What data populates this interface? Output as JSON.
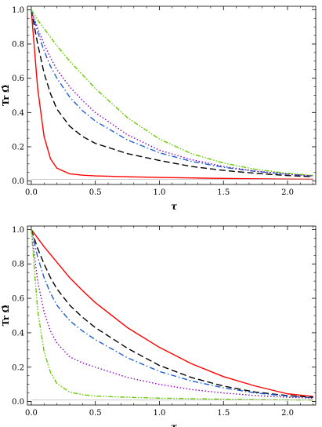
{
  "chart_data": [
    {
      "type": "line",
      "xlabel": "τ",
      "ylabel": "Tr Ω̂",
      "xlim": [
        -0.03,
        2.22
      ],
      "ylim": [
        -0.02,
        1.02
      ],
      "x_ticks": [
        "0.0",
        "0.5",
        "1.0",
        "1.5",
        "2.0"
      ],
      "y_ticks": [
        "0.0",
        "0.2",
        "0.4",
        "0.6",
        "0.8",
        "1.0"
      ],
      "x": [
        0,
        0.05,
        0.1,
        0.15,
        0.2,
        0.3,
        0.4,
        0.5,
        0.75,
        1.0,
        1.25,
        1.5,
        1.75,
        2.0,
        2.2
      ],
      "series": [
        {
          "color": "#ff0000",
          "dash": "solid",
          "values": [
            1.0,
            0.54,
            0.26,
            0.13,
            0.075,
            0.042,
            0.034,
            0.03,
            0.025,
            0.021,
            0.018,
            0.015,
            0.013,
            0.011,
            0.01
          ]
        },
        {
          "color": "#000000",
          "dash": "dashed",
          "values": [
            1.0,
            0.8,
            0.63,
            0.51,
            0.42,
            0.32,
            0.26,
            0.22,
            0.16,
            0.12,
            0.085,
            0.062,
            0.045,
            0.032,
            0.025
          ]
        },
        {
          "color": "#1f5fd0",
          "dash": "dashdot",
          "values": [
            1.0,
            0.87,
            0.76,
            0.67,
            0.6,
            0.49,
            0.41,
            0.35,
            0.24,
            0.165,
            0.115,
            0.08,
            0.056,
            0.04,
            0.03
          ]
        },
        {
          "color": "#8a00c8",
          "dash": "dotted",
          "values": [
            1.0,
            0.89,
            0.8,
            0.72,
            0.65,
            0.55,
            0.47,
            0.4,
            0.27,
            0.18,
            0.125,
            0.085,
            0.058,
            0.04,
            0.03
          ]
        },
        {
          "color": "#66cc00",
          "dash": "dashdotdot",
          "values": [
            1.0,
            0.94,
            0.89,
            0.84,
            0.79,
            0.7,
            0.62,
            0.54,
            0.37,
            0.245,
            0.16,
            0.105,
            0.068,
            0.045,
            0.033
          ]
        },
        {
          "color": "#aaaaaa",
          "dash": "thin",
          "values": [
            0.01,
            0.01,
            0.01,
            0.01,
            0.01,
            0.01,
            0.01,
            0.01,
            0.01,
            0.01,
            0.01,
            0.01,
            0.01,
            0.01,
            0.01
          ]
        }
      ]
    },
    {
      "type": "line",
      "xlabel": "τ",
      "ylabel": "Tr Ω̂",
      "xlim": [
        -0.03,
        2.22
      ],
      "ylim": [
        -0.02,
        1.02
      ],
      "x_ticks": [
        "0.0",
        "0.5",
        "1.0",
        "1.5",
        "2.0"
      ],
      "y_ticks": [
        "0.0",
        "0.2",
        "0.4",
        "0.6",
        "0.8",
        "1.0"
      ],
      "x": [
        0,
        0.05,
        0.1,
        0.15,
        0.2,
        0.3,
        0.4,
        0.5,
        0.75,
        1.0,
        1.25,
        1.5,
        1.75,
        2.0,
        2.2
      ],
      "series": [
        {
          "color": "#ff0000",
          "dash": "solid",
          "values": [
            1.0,
            0.95,
            0.9,
            0.855,
            0.81,
            0.72,
            0.645,
            0.575,
            0.43,
            0.315,
            0.22,
            0.145,
            0.09,
            0.045,
            0.03
          ]
        },
        {
          "color": "#000000",
          "dash": "dashed",
          "values": [
            1.0,
            0.89,
            0.8,
            0.72,
            0.655,
            0.56,
            0.49,
            0.43,
            0.31,
            0.21,
            0.14,
            0.09,
            0.055,
            0.035,
            0.025
          ]
        },
        {
          "color": "#1f5fd0",
          "dash": "dashdot",
          "values": [
            1.0,
            0.84,
            0.72,
            0.63,
            0.56,
            0.47,
            0.41,
            0.36,
            0.255,
            0.175,
            0.12,
            0.08,
            0.05,
            0.032,
            0.022
          ]
        },
        {
          "color": "#8a00c8",
          "dash": "dotted",
          "values": [
            1.0,
            0.7,
            0.52,
            0.41,
            0.34,
            0.26,
            0.225,
            0.2,
            0.14,
            0.1,
            0.07,
            0.05,
            0.035,
            0.025,
            0.02
          ]
        },
        {
          "color": "#66cc00",
          "dash": "dashdotdot",
          "values": [
            1.0,
            0.53,
            0.29,
            0.17,
            0.105,
            0.055,
            0.04,
            0.032,
            0.025,
            0.02,
            0.017,
            0.014,
            0.012,
            0.01,
            0.009
          ]
        },
        {
          "color": "#aaaaaa",
          "dash": "thin",
          "values": [
            0.01,
            0.01,
            0.01,
            0.01,
            0.01,
            0.01,
            0.01,
            0.01,
            0.01,
            0.01,
            0.01,
            0.01,
            0.01,
            0.01,
            0.01
          ]
        }
      ]
    }
  ]
}
